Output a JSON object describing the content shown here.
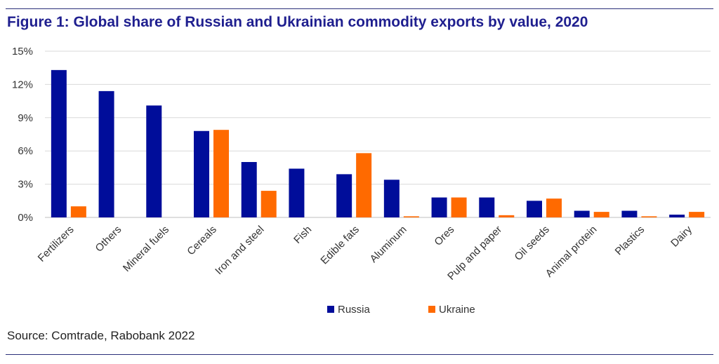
{
  "title": "Figure 1: Global share of Russian and Ukrainian commodity exports by value, 2020",
  "source": "Source: Comtrade, Rabobank 2022",
  "chart_data": {
    "type": "bar",
    "categories": [
      "Fertilizers",
      "Others",
      "Mineral fuels",
      "Cereals",
      "Iron and steel",
      "Fish",
      "Edible fats",
      "Aluminum",
      "Ores",
      "Pulp and paper",
      "Oil seeds",
      "Animal protein",
      "Plastics",
      "Dairy"
    ],
    "series": [
      {
        "name": "Russia",
        "color": "#000d9a",
        "values": [
          13.3,
          11.4,
          10.1,
          7.8,
          5.0,
          4.4,
          3.9,
          3.4,
          1.8,
          1.8,
          1.5,
          0.6,
          0.6,
          0.25
        ]
      },
      {
        "name": "Ukraine",
        "color": "#ff6a00",
        "values": [
          1.0,
          0.0,
          0.0,
          7.9,
          2.4,
          0.0,
          5.8,
          0.1,
          1.8,
          0.2,
          1.7,
          0.5,
          0.1,
          0.5
        ]
      }
    ],
    "ylim": [
      0,
      15
    ],
    "yticks": [
      "0%",
      "3%",
      "6%",
      "9%",
      "12%",
      "15%"
    ],
    "ytick_values": [
      0,
      3,
      6,
      9,
      12,
      15
    ],
    "grid": true,
    "legend": "bottom-center"
  }
}
